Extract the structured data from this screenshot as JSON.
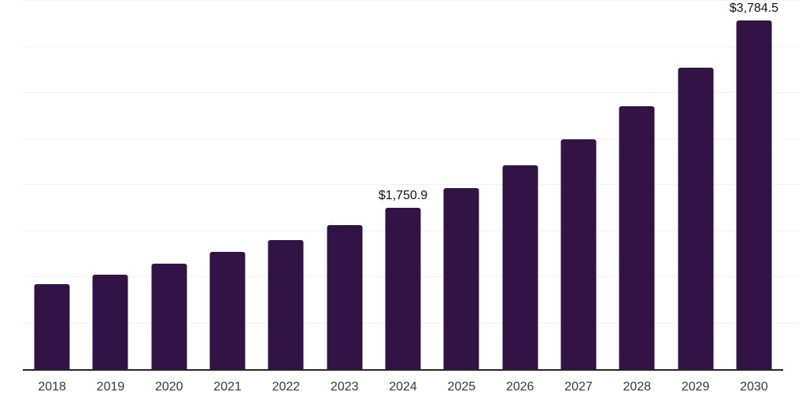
{
  "chart_data": {
    "type": "bar",
    "title": "",
    "xlabel": "",
    "ylabel": "",
    "categories": [
      "2018",
      "2019",
      "2020",
      "2021",
      "2022",
      "2023",
      "2024",
      "2025",
      "2026",
      "2027",
      "2028",
      "2029",
      "2030"
    ],
    "values": [
      923,
      1023,
      1145,
      1270,
      1406,
      1568,
      1750.9,
      1966,
      2216,
      2500,
      2856,
      3277,
      3784.5
    ],
    "data_labels": [
      "",
      "",
      "",
      "",
      "",
      "",
      "$1,750.9",
      "",
      "",
      "",
      "",
      "",
      "$3,784.5"
    ],
    "ylim": [
      0,
      4000
    ],
    "gridline_step": 500,
    "grid": true,
    "legend": false,
    "colors": {
      "bar": "#321345",
      "gridline": "#f2f2f2",
      "axis_line": "#262626",
      "tick_label": "#383838",
      "data_label": "#111111"
    }
  }
}
